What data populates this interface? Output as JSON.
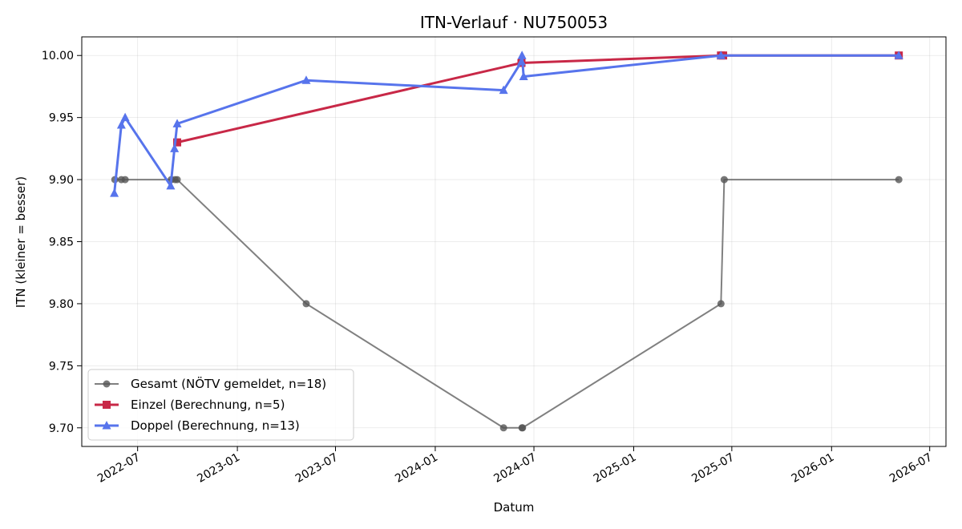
{
  "chart_data": {
    "type": "line",
    "title": "ITN-Verlauf · NU750053",
    "xlabel": "Datum",
    "ylabel": "ITN  (kleiner = besser)",
    "x_axis": "date",
    "xlim": [
      "2022-03-20",
      "2026-07-31"
    ],
    "ylim": [
      9.685,
      10.015
    ],
    "x_ticks": [
      "2022-07-01",
      "2023-01-01",
      "2023-07-01",
      "2024-01-01",
      "2024-07-01",
      "2025-01-01",
      "2025-07-01",
      "2026-01-01",
      "2026-07-01"
    ],
    "x_tick_labels": [
      "2022-07",
      "2023-01",
      "2023-07",
      "2024-01",
      "2024-07",
      "2025-01",
      "2025-07",
      "2026-01",
      "2026-07"
    ],
    "y_ticks": [
      9.7,
      9.75,
      9.8,
      9.85,
      9.9,
      9.95,
      10.0
    ],
    "y_tick_labels": [
      "9.70",
      "9.75",
      "9.80",
      "9.85",
      "9.90",
      "9.95",
      "10.00"
    ],
    "grid": true,
    "legend_position": "lower-left",
    "series": [
      {
        "name": "Gesamt (NÖTV gemeldet, n=18)",
        "color": "#555555",
        "marker": "circle",
        "points": [
          {
            "x": "2022-05-20",
            "y": 9.9
          },
          {
            "x": "2022-06-01",
            "y": 9.9
          },
          {
            "x": "2022-06-08",
            "y": 9.9
          },
          {
            "x": "2022-09-01",
            "y": 9.9
          },
          {
            "x": "2022-09-08",
            "y": 9.9
          },
          {
            "x": "2022-09-12",
            "y": 9.9
          },
          {
            "x": "2023-05-08",
            "y": 9.8
          },
          {
            "x": "2024-05-06",
            "y": 9.7
          },
          {
            "x": "2024-06-09",
            "y": 9.7
          },
          {
            "x": "2024-06-10",
            "y": 9.7
          },
          {
            "x": "2025-06-11",
            "y": 9.8
          },
          {
            "x": "2025-06-17",
            "y": 9.9
          },
          {
            "x": "2026-05-05",
            "y": 9.9
          }
        ]
      },
      {
        "name": "Einzel (Berechnung, n=5)",
        "color": "#c82847",
        "marker": "square",
        "points": [
          {
            "x": "2022-09-12",
            "y": 9.93
          },
          {
            "x": "2024-06-08",
            "y": 9.994
          },
          {
            "x": "2025-06-11",
            "y": 10.0
          },
          {
            "x": "2025-06-15",
            "y": 10.0
          },
          {
            "x": "2026-05-05",
            "y": 10.0
          }
        ]
      },
      {
        "name": "Doppel (Berechnung, n=13)",
        "color": "#5774ec",
        "marker": "triangle",
        "points": [
          {
            "x": "2022-05-19",
            "y": 9.889
          },
          {
            "x": "2022-06-01",
            "y": 9.944
          },
          {
            "x": "2022-06-08",
            "y": 9.95
          },
          {
            "x": "2022-08-31",
            "y": 9.895
          },
          {
            "x": "2022-09-07",
            "y": 9.925
          },
          {
            "x": "2022-09-12",
            "y": 9.945
          },
          {
            "x": "2023-05-08",
            "y": 9.98
          },
          {
            "x": "2024-05-06",
            "y": 9.972
          },
          {
            "x": "2024-06-08",
            "y": 9.995
          },
          {
            "x": "2024-06-09",
            "y": 10.0
          },
          {
            "x": "2024-06-12",
            "y": 9.983
          },
          {
            "x": "2025-06-11",
            "y": 10.0
          },
          {
            "x": "2026-05-05",
            "y": 10.0
          }
        ]
      }
    ]
  }
}
